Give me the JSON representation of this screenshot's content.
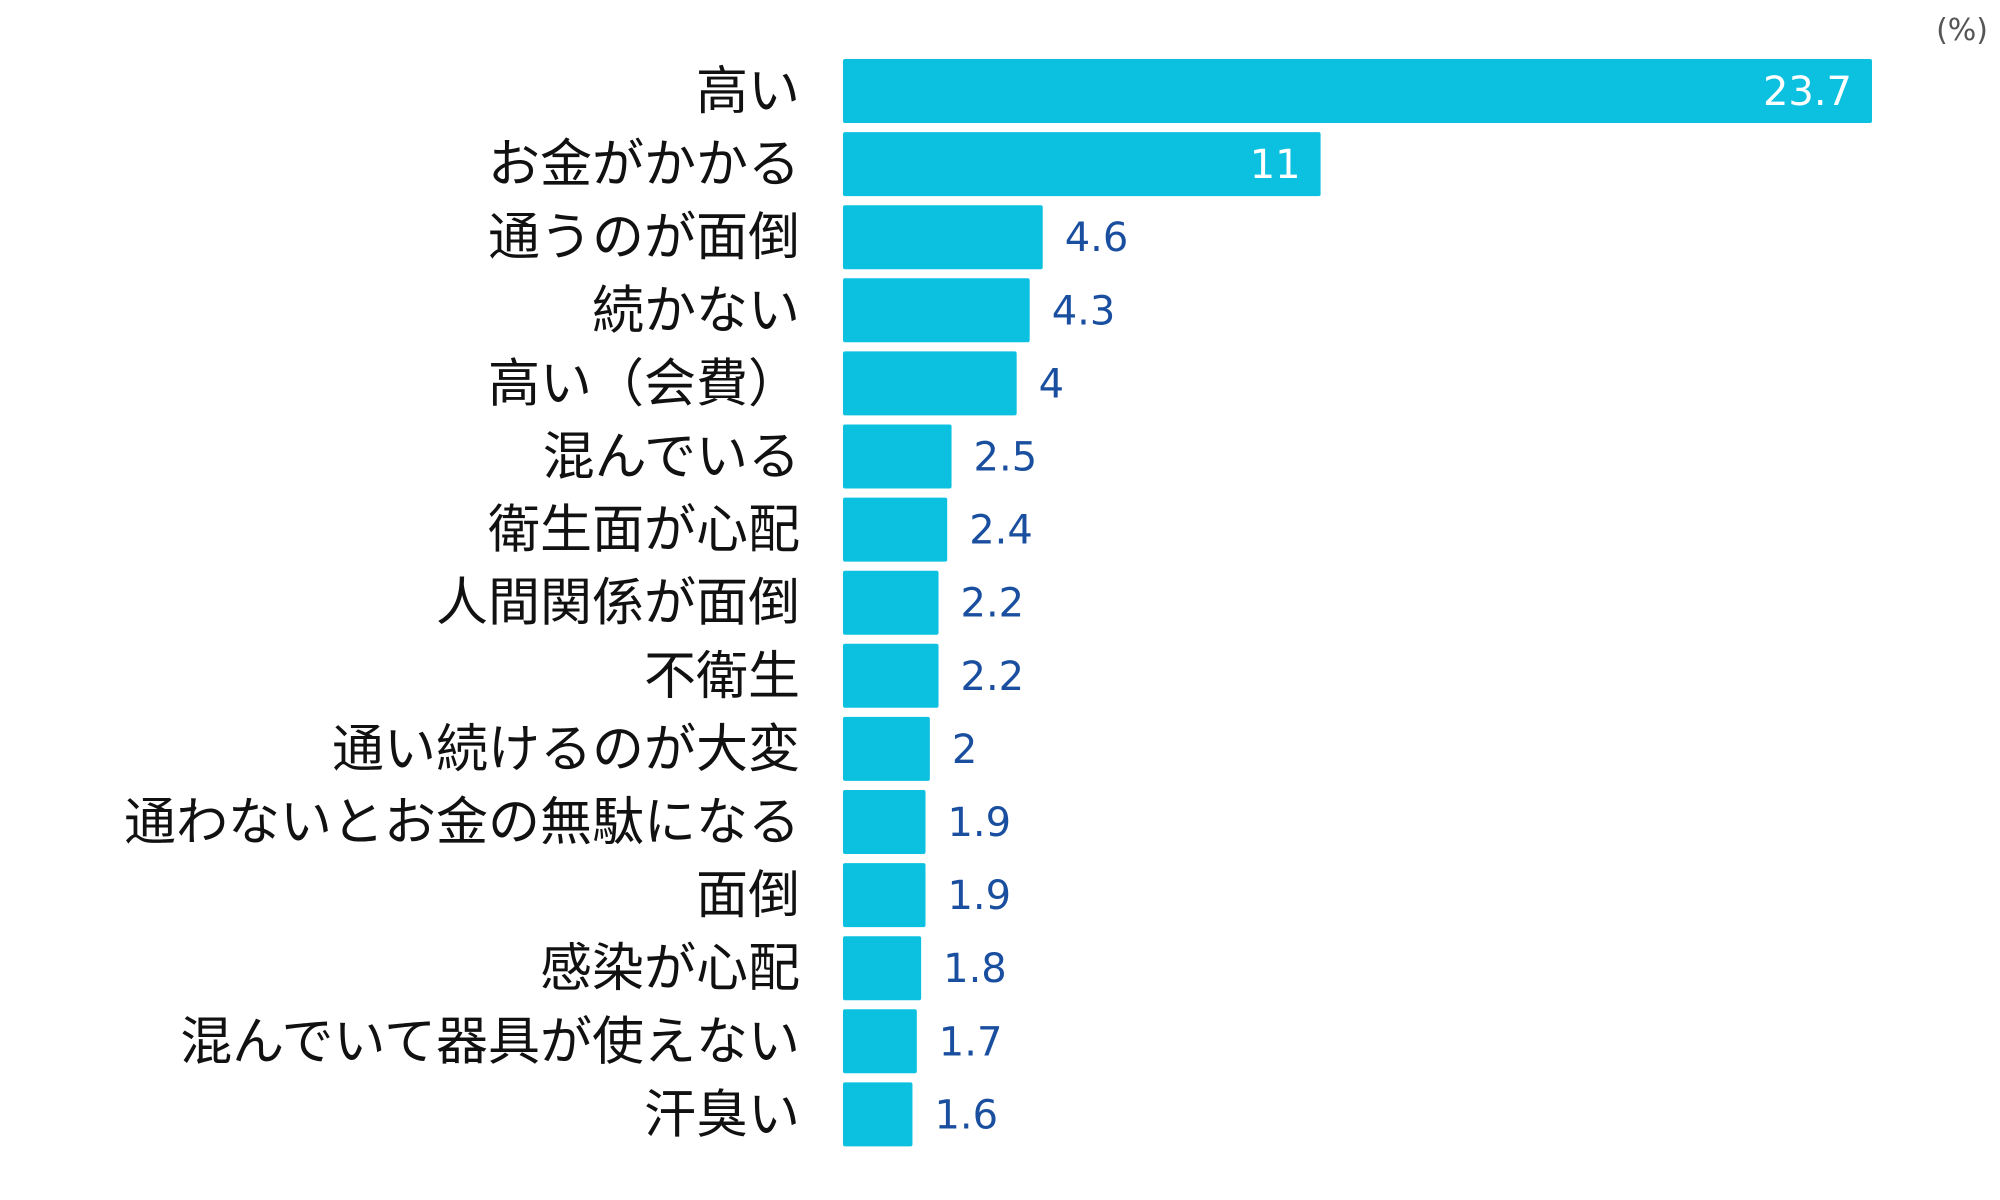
{
  "chart_data": {
    "type": "bar",
    "orientation": "horizontal",
    "unit": "(%)",
    "categories": [
      "高い",
      "お金がかかる",
      "通うのが面倒",
      "続かない",
      "高い（会費）",
      "混んでいる",
      "衛生面が心配",
      "人間関係が面倒",
      "不衛生",
      "通い続けるのが大変",
      "通わないとお金の無駄になる",
      "面倒",
      "感染が心配",
      "混んでいて器具が使えない",
      "汗臭い"
    ],
    "values": [
      23.7,
      11,
      4.6,
      4.3,
      4,
      2.5,
      2.4,
      2.2,
      2.2,
      2,
      1.9,
      1.9,
      1.8,
      1.7,
      1.6
    ],
    "value_labels": [
      "23.7",
      "11",
      "4.6",
      "4.3",
      "4",
      "2.5",
      "2.4",
      "2.2",
      "2.2",
      "2",
      "1.9",
      "1.9",
      "1.8",
      "1.7",
      "1.6"
    ],
    "xlim": [
      0,
      23.7
    ],
    "grid": false,
    "legend": "none",
    "colors": {
      "bar": "#0cc0e0",
      "value_text": "#1a4fa0",
      "value_text_inside": "#ffffff"
    }
  }
}
